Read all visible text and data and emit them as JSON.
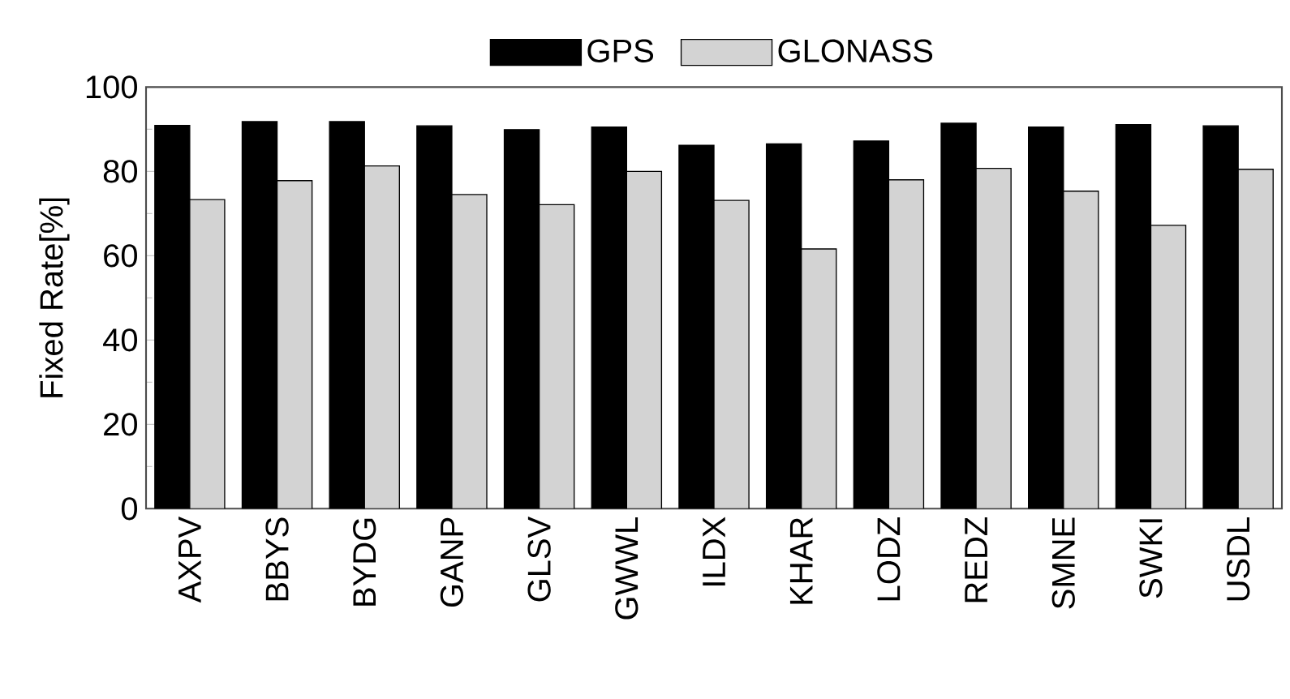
{
  "chart_data": {
    "type": "bar",
    "ylabel": "Fixed Rate[%]",
    "categories": [
      "AXPV",
      "BBYS",
      "BYDG",
      "GANP",
      "GLSV",
      "GWWL",
      "ILDX",
      "KHAR",
      "LODZ",
      "REDZ",
      "SMNE",
      "SWKI",
      "USDL"
    ],
    "series": [
      {
        "name": "GPS",
        "color": "#000000",
        "values": [
          90.9,
          91.8,
          91.8,
          90.8,
          89.9,
          90.5,
          86.2,
          86.5,
          87.2,
          91.4,
          90.5,
          91.1,
          90.8
        ]
      },
      {
        "name": "GLONASS",
        "color": "#d3d3d3",
        "values": [
          73.3,
          77.8,
          81.3,
          74.5,
          72.1,
          80.0,
          73.1,
          61.6,
          78.0,
          80.7,
          75.3,
          67.2,
          80.5
        ]
      }
    ],
    "ylim": [
      0,
      100
    ],
    "yticks": [
      0,
      20,
      40,
      60,
      80,
      100
    ],
    "legend": "top"
  }
}
